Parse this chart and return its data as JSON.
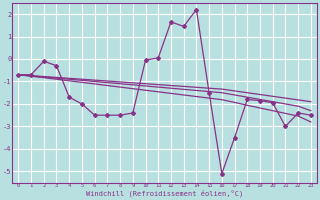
{
  "bg_color": "#b8e0e0",
  "line_color": "#883388",
  "grid_color": "#ffffff",
  "hours": [
    0,
    1,
    2,
    3,
    4,
    5,
    6,
    7,
    8,
    9,
    10,
    11,
    12,
    13,
    14,
    15,
    16,
    17,
    18,
    19,
    20,
    21,
    22,
    23
  ],
  "main_line": [
    -0.7,
    -0.7,
    -0.1,
    -0.3,
    -1.7,
    -2.0,
    -2.5,
    -2.5,
    -2.5,
    -2.4,
    -0.05,
    0.05,
    1.65,
    1.45,
    2.2,
    -1.5,
    -5.1,
    -3.5,
    -1.8,
    -1.85,
    -1.95,
    -3.0,
    -2.4,
    -2.5
  ],
  "trend1": [
    -0.7,
    -0.74,
    -0.78,
    -0.82,
    -0.86,
    -0.9,
    -0.94,
    -0.98,
    -1.02,
    -1.06,
    -1.1,
    -1.14,
    -1.18,
    -1.22,
    -1.26,
    -1.3,
    -1.34,
    -1.42,
    -1.5,
    -1.58,
    -1.66,
    -1.74,
    -1.82,
    -1.9
  ],
  "trend2": [
    -0.7,
    -0.75,
    -0.8,
    -0.85,
    -0.9,
    -0.95,
    -1.0,
    -1.05,
    -1.1,
    -1.15,
    -1.2,
    -1.25,
    -1.3,
    -1.35,
    -1.4,
    -1.45,
    -1.5,
    -1.6,
    -1.7,
    -1.8,
    -1.9,
    -2.0,
    -2.1,
    -2.3
  ],
  "trend3": [
    -0.7,
    -0.77,
    -0.83,
    -0.9,
    -0.97,
    -1.04,
    -1.11,
    -1.18,
    -1.25,
    -1.32,
    -1.39,
    -1.46,
    -1.53,
    -1.6,
    -1.67,
    -1.74,
    -1.81,
    -1.93,
    -2.06,
    -2.18,
    -2.3,
    -2.42,
    -2.54,
    -2.8
  ],
  "ylim": [
    -5.5,
    2.5
  ],
  "yticks": [
    -5,
    -4,
    -3,
    -2,
    -1,
    0,
    1,
    2
  ],
  "xlim": [
    -0.5,
    23.5
  ],
  "xlabel": "Windchill (Refroidissement éolien,°C)"
}
